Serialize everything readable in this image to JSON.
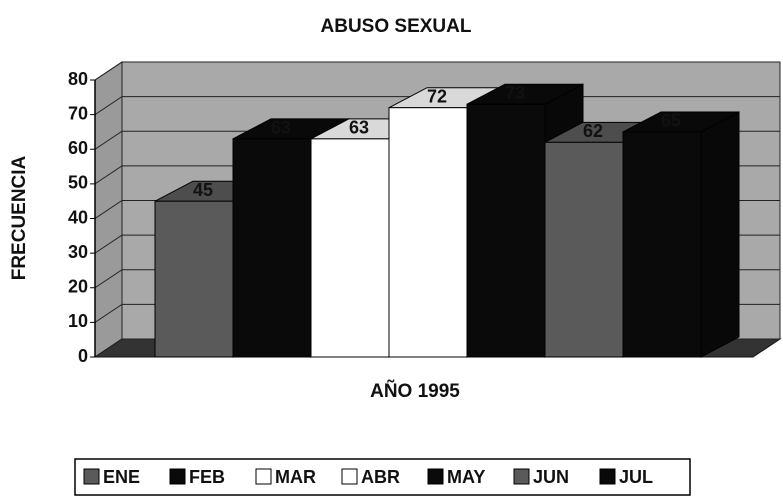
{
  "chart_data": {
    "type": "bar3d",
    "title": "ABUSO SEXUAL",
    "ylabel": "FRECUENCIA",
    "xlabel": "AÑO 1995",
    "series": [
      {
        "name": "ENE",
        "color": "#5a5a5a",
        "values": [
          45
        ]
      },
      {
        "name": "FEB",
        "color": "#0a0a0a",
        "values": [
          63
        ]
      },
      {
        "name": "MAR",
        "color": "#ffffff",
        "values": [
          63
        ]
      },
      {
        "name": "ABR",
        "color": "#ffffff",
        "values": [
          72
        ]
      },
      {
        "name": "MAY",
        "color": "#0a0a0a",
        "values": [
          73
        ]
      },
      {
        "name": "JUN",
        "color": "#5a5a5a",
        "values": [
          62
        ]
      },
      {
        "name": "JUL",
        "color": "#0a0a0a",
        "values": [
          65
        ]
      }
    ],
    "ylim": [
      0,
      80
    ],
    "yticks": [
      0,
      10,
      20,
      30,
      40,
      50,
      60,
      70,
      80
    ],
    "grid": true,
    "legend": "bottom"
  }
}
